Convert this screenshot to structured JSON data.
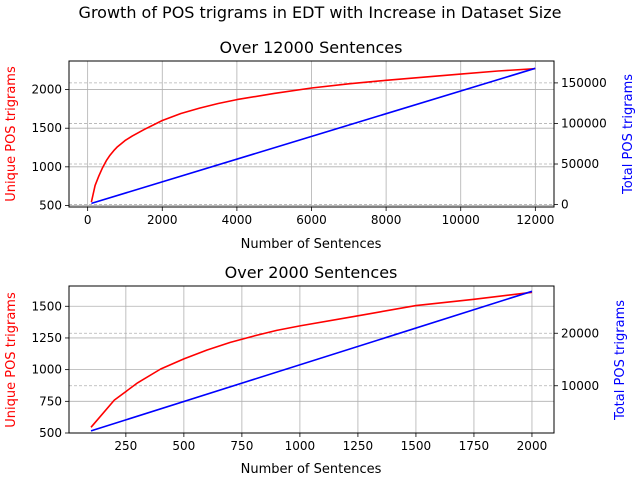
{
  "figure": {
    "suptitle": "Growth of POS trigrams in EDT with Increase in Dataset Size"
  },
  "colors": {
    "unique": "#ff0000",
    "total": "#0000ff",
    "grid": "#b0b0b0",
    "axis": "#000000"
  },
  "chart_data": [
    {
      "type": "line",
      "title": "Over 12000 Sentences",
      "xlabel": "Number of Sentences",
      "ylabel_left": "Unique POS trigrams",
      "ylabel_right": "Total POS trigrams",
      "xlim": [
        -500,
        12500
      ],
      "ylim_left": [
        480,
        2370
      ],
      "ylim_right": [
        -3000,
        177000
      ],
      "xticks": [
        0,
        2000,
        4000,
        6000,
        8000,
        10000,
        12000
      ],
      "xtick_labels": [
        "0",
        "2000",
        "4000",
        "6000",
        "8000",
        "10000",
        "12000"
      ],
      "yticks_left": [
        500,
        1000,
        1500,
        2000
      ],
      "ytick_labels_left": [
        "500",
        "1000",
        "1500",
        "2000"
      ],
      "yticks_right": [
        0,
        50000,
        100000,
        150000
      ],
      "ytick_labels_right": [
        "0",
        "50000",
        "100000",
        "150000"
      ],
      "grid": true,
      "series": [
        {
          "axis": "left",
          "color": "#ff0000",
          "x": [
            100,
            200,
            300,
            400,
            500,
            600,
            700,
            800,
            900,
            1000,
            1200,
            1500,
            2000,
            2500,
            3000,
            3500,
            4000,
            5000,
            6000,
            7000,
            8000,
            9000,
            10000,
            11000,
            12000
          ],
          "values": [
            545,
            760,
            880,
            990,
            1080,
            1150,
            1210,
            1260,
            1300,
            1340,
            1400,
            1480,
            1600,
            1690,
            1760,
            1820,
            1870,
            1950,
            2020,
            2075,
            2120,
            2160,
            2200,
            2240,
            2270
          ]
        },
        {
          "axis": "right",
          "color": "#0000ff",
          "x": [
            100,
            12000
          ],
          "values": [
            1400,
            168000
          ]
        }
      ]
    },
    {
      "type": "line",
      "title": "Over 2000 Sentences",
      "xlabel": "Number of Sentences",
      "ylabel_left": "Unique POS trigrams",
      "ylabel_right": "Total POS trigrams",
      "xlim": [
        5,
        2095
      ],
      "ylim_left": [
        500,
        1660
      ],
      "ylim_right": [
        1000,
        29000
      ],
      "xticks": [
        250,
        500,
        750,
        1000,
        1250,
        1500,
        1750,
        2000
      ],
      "xtick_labels": [
        "250",
        "500",
        "750",
        "1000",
        "1250",
        "1500",
        "1750",
        "2000"
      ],
      "yticks_left": [
        500,
        750,
        1000,
        1250,
        1500
      ],
      "ytick_labels_left": [
        "500",
        "750",
        "1000",
        "1250",
        "1500"
      ],
      "yticks_right": [
        10000,
        20000
      ],
      "ytick_labels_right": [
        "10000",
        "20000"
      ],
      "grid": true,
      "series": [
        {
          "axis": "left",
          "color": "#ff0000",
          "x": [
            100,
            200,
            300,
            400,
            500,
            600,
            700,
            800,
            900,
            1000,
            1250,
            1500,
            1750,
            2000
          ],
          "values": [
            545,
            760,
            895,
            1005,
            1085,
            1155,
            1215,
            1265,
            1310,
            1345,
            1425,
            1505,
            1555,
            1610
          ]
        },
        {
          "axis": "right",
          "color": "#0000ff",
          "x": [
            100,
            2000
          ],
          "values": [
            1400,
            28000
          ]
        }
      ]
    }
  ]
}
